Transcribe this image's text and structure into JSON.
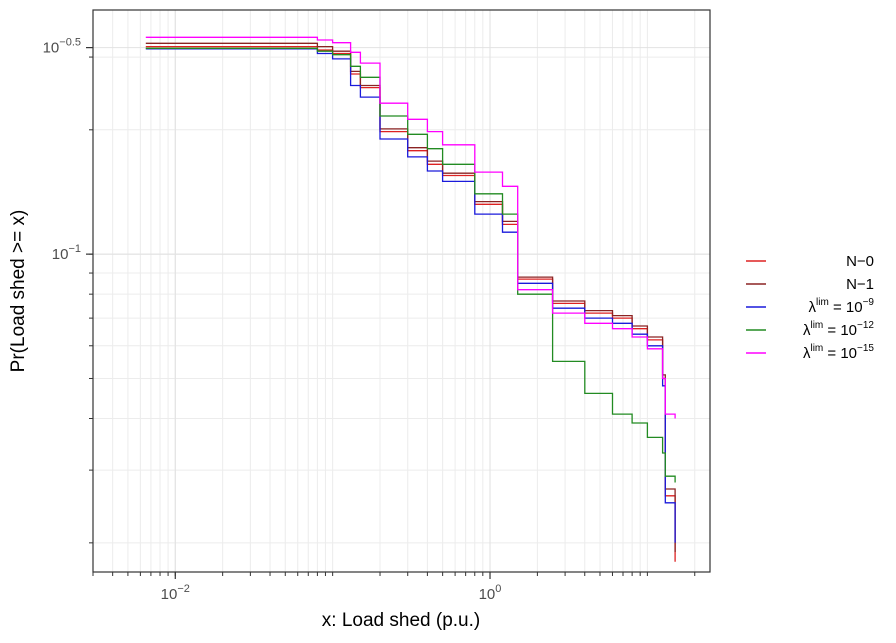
{
  "chart_data": {
    "type": "line",
    "step": true,
    "xlabel": "x: Load shed (p.u.)",
    "ylabel": "Pr(Load shed >= x)",
    "x_scale": "log10",
    "y_scale": "log10",
    "xlim": [
      0.003,
      25
    ],
    "ylim": [
      0.017,
      0.39
    ],
    "x_ticks": [
      {
        "value": 0.01,
        "base": "10",
        "exp": "−2"
      },
      {
        "value": 1,
        "base": "10",
        "exp": "0"
      }
    ],
    "y_ticks": [
      {
        "value": 0.1,
        "base": "10",
        "exp": "−1"
      },
      {
        "value": 0.316227766,
        "base": "10",
        "exp": "−0.5"
      }
    ],
    "grid": true,
    "legend_position": "right",
    "series": [
      {
        "name": "N−0",
        "label": {
          "sym": "",
          "sup": "",
          "eq": "",
          "base": "N−0",
          "exp": ""
        },
        "color": "#dd2222",
        "x": [
          0.0065,
          0.05,
          0.08,
          0.1,
          0.13,
          0.15,
          0.2,
          0.3,
          0.4,
          0.5,
          0.8,
          1.2,
          1.5,
          2.5,
          4,
          6,
          8,
          10,
          12.5,
          13,
          15
        ],
        "y": [
          0.318,
          0.318,
          0.312,
          0.306,
          0.273,
          0.253,
          0.198,
          0.178,
          0.165,
          0.155,
          0.132,
          0.118,
          0.087,
          0.076,
          0.072,
          0.07,
          0.066,
          0.062,
          0.05,
          0.026,
          0.018
        ]
      },
      {
        "name": "N−1",
        "label": {
          "sym": "",
          "sup": "",
          "eq": "",
          "base": "N−1",
          "exp": ""
        },
        "color": "#8b2323",
        "x": [
          0.0065,
          0.05,
          0.08,
          0.1,
          0.13,
          0.15,
          0.2,
          0.3,
          0.4,
          0.5,
          0.8,
          1.2,
          1.5,
          2.5,
          4,
          6,
          8,
          10,
          12.5,
          13,
          15
        ],
        "y": [
          0.324,
          0.324,
          0.318,
          0.31,
          0.277,
          0.256,
          0.201,
          0.181,
          0.168,
          0.157,
          0.134,
          0.12,
          0.088,
          0.077,
          0.073,
          0.071,
          0.067,
          0.063,
          0.051,
          0.027,
          0.019
        ]
      },
      {
        "name": "λ^lim = 10^−9",
        "label": {
          "sym": "λ",
          "sup": "lim",
          "eq": "=",
          "base": "10",
          "exp": "−9"
        },
        "color": "#1a1adb",
        "x": [
          0.0065,
          0.05,
          0.08,
          0.1,
          0.13,
          0.15,
          0.2,
          0.3,
          0.4,
          0.5,
          0.8,
          1.2,
          1.5,
          2.5,
          4,
          6,
          8,
          10,
          12.5,
          13,
          15
        ],
        "y": [
          0.314,
          0.314,
          0.306,
          0.297,
          0.256,
          0.24,
          0.19,
          0.172,
          0.159,
          0.15,
          0.125,
          0.113,
          0.085,
          0.074,
          0.07,
          0.068,
          0.064,
          0.06,
          0.048,
          0.025,
          0.02
        ]
      },
      {
        "name": "λ^lim = 10^−12",
        "label": {
          "sym": "λ",
          "sup": "lim",
          "eq": "=",
          "base": "10",
          "exp": "−12"
        },
        "color": "#228b22",
        "x": [
          0.0065,
          0.05,
          0.08,
          0.1,
          0.13,
          0.15,
          0.2,
          0.3,
          0.4,
          0.5,
          0.8,
          1.2,
          1.5,
          2.5,
          4,
          6,
          8,
          10,
          12.5,
          13,
          15
        ],
        "y": [
          0.315,
          0.315,
          0.31,
          0.304,
          0.285,
          0.268,
          0.216,
          0.195,
          0.18,
          0.165,
          0.14,
          0.125,
          0.08,
          0.055,
          0.046,
          0.041,
          0.039,
          0.036,
          0.033,
          0.029,
          0.028
        ]
      },
      {
        "name": "λ^lim = 10^−15",
        "label": {
          "sym": "λ",
          "sup": "lim",
          "eq": "=",
          "base": "10",
          "exp": "−15"
        },
        "color": "#ff00ff",
        "x": [
          0.0065,
          0.05,
          0.08,
          0.1,
          0.13,
          0.15,
          0.2,
          0.3,
          0.4,
          0.5,
          0.8,
          1.2,
          1.5,
          2.5,
          4,
          6,
          8,
          10,
          12.5,
          13,
          15
        ],
        "y": [
          0.335,
          0.335,
          0.33,
          0.325,
          0.308,
          0.29,
          0.232,
          0.212,
          0.198,
          0.184,
          0.158,
          0.146,
          0.082,
          0.072,
          0.068,
          0.066,
          0.063,
          0.059,
          0.05,
          0.041,
          0.04
        ]
      }
    ]
  }
}
